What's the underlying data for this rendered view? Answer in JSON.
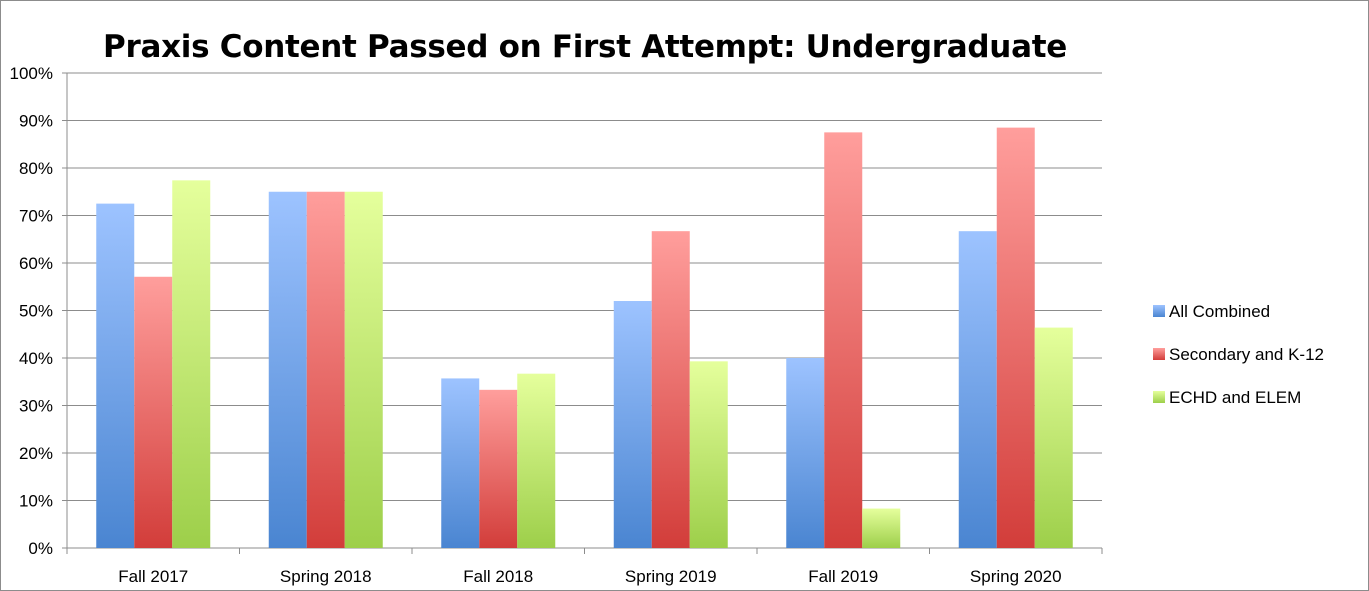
{
  "chart_data": {
    "type": "bar",
    "title": "Praxis Content Passed on First Attempt: Undergraduate",
    "xlabel": "",
    "ylabel": "",
    "categories": [
      "Fall 2017",
      "Spring 2018",
      "Fall 2018",
      "Spring 2019",
      "Fall 2019",
      "Spring 2020"
    ],
    "series": [
      {
        "name": "All Combined",
        "values": [
          72.5,
          75,
          35.7,
          52,
          40,
          66.7
        ],
        "color_top": "#9dc3ff",
        "color_bottom": "#4a85d1"
      },
      {
        "name": "Secondary and K-12",
        "values": [
          57.1,
          75,
          33.3,
          66.7,
          87.5,
          88.5
        ],
        "color_top": "#ff9e9c",
        "color_bottom": "#d23d3a"
      },
      {
        "name": "ECHD and ELEM",
        "values": [
          77.4,
          75,
          36.7,
          39.3,
          8.3,
          46.4
        ],
        "color_top": "#e5ff9c",
        "color_bottom": "#9dcf4a"
      }
    ],
    "ylim": [
      0,
      100
    ],
    "yticks": [
      0,
      10,
      20,
      30,
      40,
      50,
      60,
      70,
      80,
      90,
      100
    ],
    "ytick_labels": [
      "0%",
      "10%",
      "20%",
      "30%",
      "40%",
      "50%",
      "60%",
      "70%",
      "80%",
      "90%",
      "100%"
    ],
    "grid": true,
    "legend_position": "right"
  }
}
